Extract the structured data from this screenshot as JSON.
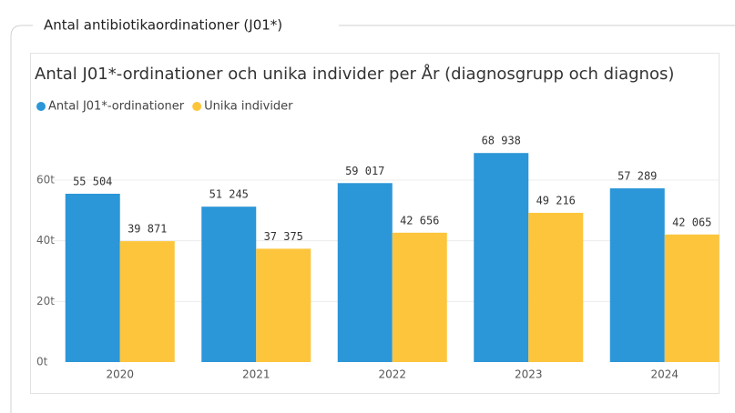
{
  "panel_title": "Antal antibiotikaordinationer (J01*)",
  "chart_data": {
    "type": "bar",
    "title": "Antal J01*-ordinationer och unika individer per År (diagnosgrupp och diagnos)",
    "categories": [
      "2020",
      "2021",
      "2022",
      "2023",
      "2024"
    ],
    "series": [
      {
        "name": "Antal J01*-ordinationer",
        "color": "#2b96d8",
        "values": [
          55504,
          51245,
          59017,
          68938,
          57289
        ],
        "value_labels": [
          "55 504",
          "51 245",
          "59 017",
          "68 938",
          "57 289"
        ]
      },
      {
        "name": "Unika individer",
        "color": "#fdc53c",
        "values": [
          39871,
          37375,
          42656,
          49216,
          42065
        ],
        "value_labels": [
          "39 871",
          "37 375",
          "42 656",
          "49 216",
          "42 065"
        ]
      }
    ],
    "ylim": [
      0,
      75000
    ],
    "yticks": [
      {
        "value": 0,
        "label": "0t"
      },
      {
        "value": 20000,
        "label": "20t"
      },
      {
        "value": 40000,
        "label": "40t"
      },
      {
        "value": 60000,
        "label": "60t"
      }
    ],
    "grid": true,
    "legend": "top-left"
  }
}
